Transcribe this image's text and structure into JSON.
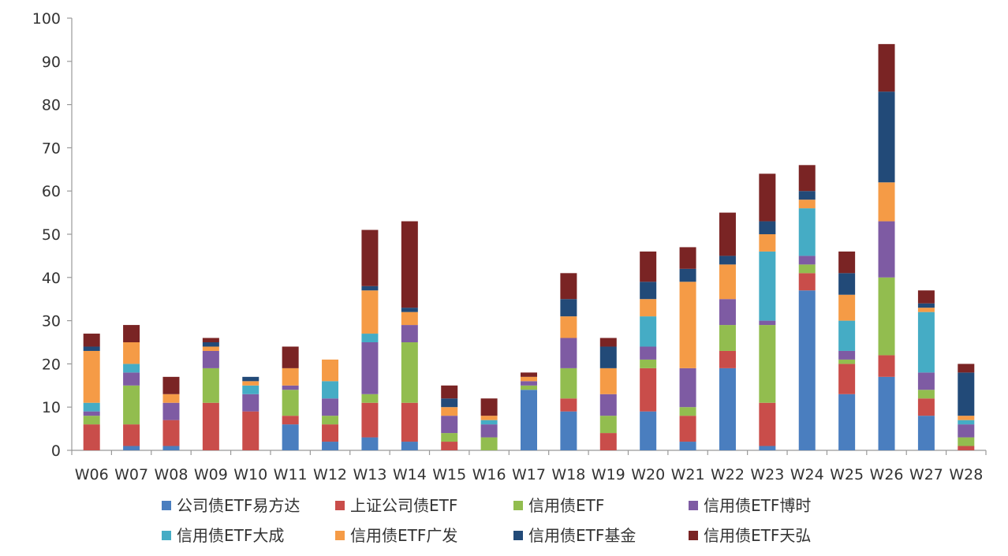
{
  "chart_data": {
    "type": "bar",
    "stacked": true,
    "title": "",
    "xlabel": "",
    "ylabel": "",
    "ylim": [
      0,
      100
    ],
    "yticks": [
      0,
      10,
      20,
      30,
      40,
      50,
      60,
      70,
      80,
      90,
      100
    ],
    "grid": false,
    "legend_position": "bottom",
    "categories": [
      "W06",
      "W07",
      "W08",
      "W09",
      "W10",
      "W11",
      "W12",
      "W13",
      "W14",
      "W15",
      "W16",
      "W17",
      "W18",
      "W19",
      "W20",
      "W21",
      "W22",
      "W23",
      "W24",
      "W25",
      "W26",
      "W27",
      "W28"
    ],
    "series": [
      {
        "name": "公司债ETF易方达",
        "color": "#4a7ebf",
        "values": [
          0,
          1,
          1,
          0,
          0,
          6,
          2,
          3,
          2,
          0,
          0,
          14,
          9,
          0,
          9,
          2,
          19,
          1,
          37,
          13,
          17,
          8,
          0
        ]
      },
      {
        "name": "上证公司债ETF",
        "color": "#c94d4a",
        "values": [
          6,
          5,
          6,
          11,
          9,
          2,
          4,
          8,
          9,
          2,
          0,
          0,
          3,
          4,
          10,
          6,
          4,
          10,
          4,
          7,
          5,
          4,
          1
        ]
      },
      {
        "name": "信用债ETF",
        "color": "#92bd4f",
        "values": [
          2,
          9,
          0,
          8,
          0,
          6,
          2,
          2,
          14,
          2,
          3,
          1,
          7,
          4,
          2,
          2,
          6,
          18,
          2,
          1,
          18,
          2,
          2
        ]
      },
      {
        "name": "信用债ETF博时",
        "color": "#7e5ba3",
        "values": [
          1,
          3,
          4,
          4,
          4,
          1,
          4,
          12,
          4,
          4,
          3,
          1,
          7,
          5,
          3,
          9,
          6,
          1,
          2,
          2,
          13,
          4,
          3
        ]
      },
      {
        "name": "信用债ETF大成",
        "color": "#45acc5",
        "values": [
          2,
          2,
          0,
          0,
          2,
          0,
          4,
          2,
          0,
          0,
          1,
          0,
          0,
          0,
          7,
          0,
          0,
          16,
          11,
          7,
          0,
          14,
          1
        ]
      },
      {
        "name": "信用债ETF广发",
        "color": "#f59b46",
        "values": [
          12,
          5,
          2,
          1,
          1,
          4,
          5,
          10,
          3,
          2,
          1,
          1,
          5,
          6,
          4,
          20,
          8,
          4,
          2,
          6,
          9,
          1,
          1
        ]
      },
      {
        "name": "信用债ETF基金",
        "color": "#224a78",
        "values": [
          1,
          0,
          0,
          1,
          1,
          0,
          0,
          1,
          1,
          2,
          0,
          0,
          4,
          5,
          4,
          3,
          2,
          3,
          2,
          5,
          21,
          1,
          10
        ]
      },
      {
        "name": "信用债ETF天弘",
        "color": "#7a2424",
        "values": [
          3,
          4,
          4,
          1,
          0,
          5,
          0,
          13,
          20,
          3,
          4,
          1,
          6,
          2,
          7,
          5,
          10,
          11,
          6,
          5,
          11,
          3,
          2
        ]
      }
    ]
  }
}
